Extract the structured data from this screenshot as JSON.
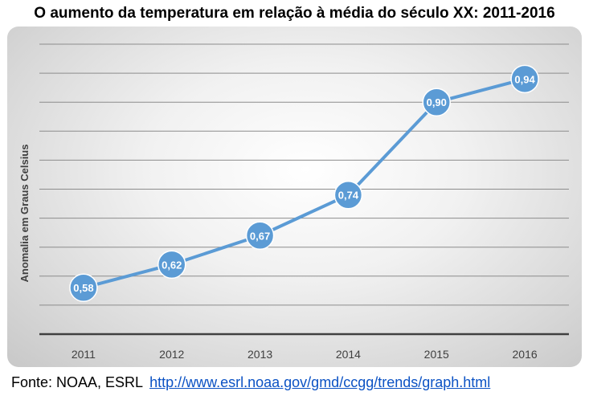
{
  "chart_data": {
    "type": "line",
    "title": "O aumento da temperatura em relação à média do século XX: 2011-2016",
    "ylabel": "Anomalia em Graus Celsius",
    "xlabel": "",
    "categories": [
      "2011",
      "2012",
      "2013",
      "2014",
      "2015",
      "2016"
    ],
    "series": [
      {
        "values": [
          0.58,
          0.62,
          0.67,
          0.74,
          0.9,
          0.94
        ],
        "labels": [
          "0,58",
          "0,62",
          "0,67",
          "0,74",
          "0,90",
          "0,94"
        ],
        "color": "#5b9bd5"
      }
    ],
    "ylim": [
      0.5,
      1.0
    ],
    "grid": true,
    "legend": "none"
  },
  "source": {
    "label": "Fonte: NOAA, ESRL",
    "link": "http://www.esrl.noaa.gov/gmd/ccgg/trends/graph.html"
  }
}
